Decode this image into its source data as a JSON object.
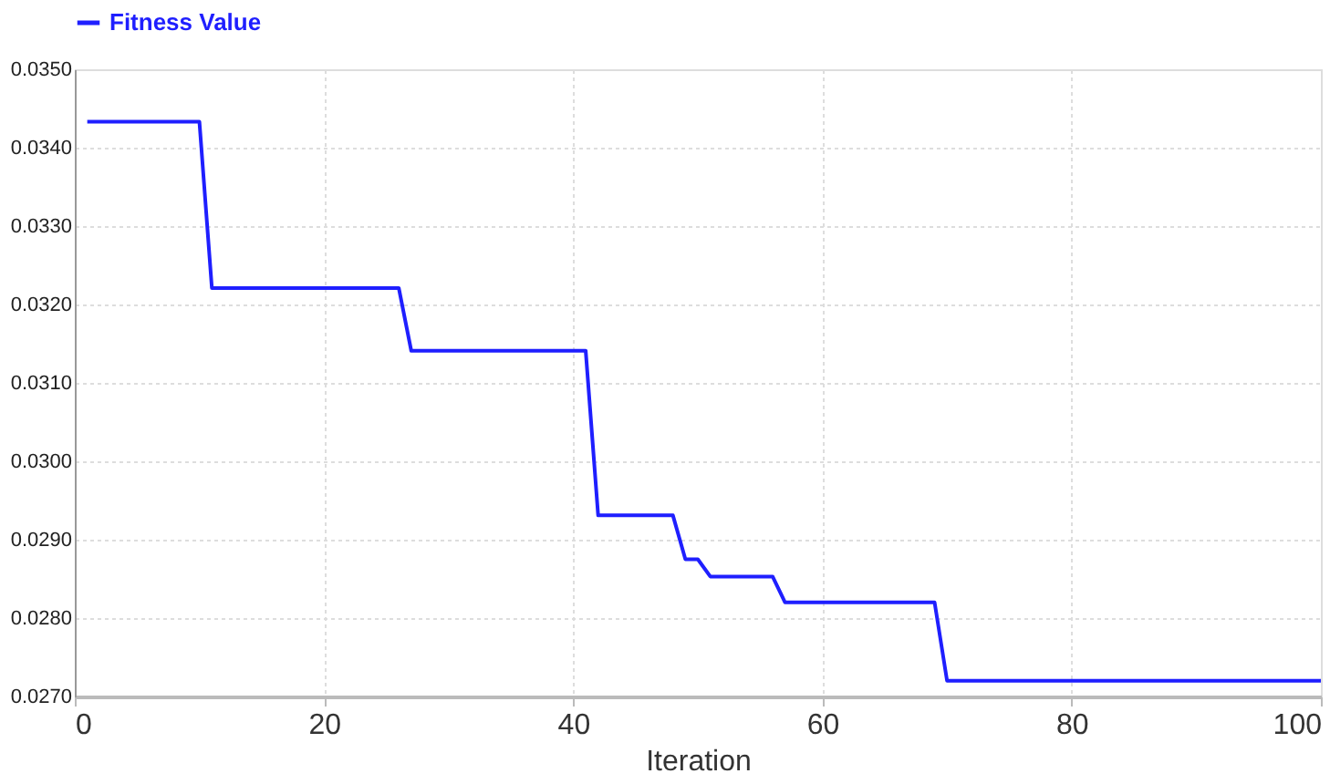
{
  "chart_data": {
    "type": "line",
    "xlabel": "Iteration",
    "x": [
      1,
      10,
      11,
      26,
      27,
      41,
      42,
      48,
      49,
      50,
      51,
      56,
      57,
      69,
      70,
      100
    ],
    "series": [
      {
        "name": "Fitness Value",
        "color": "#1f1fff",
        "values": [
          0.03433,
          0.03433,
          0.03221,
          0.03221,
          0.03141,
          0.03141,
          0.02931,
          0.02931,
          0.02875,
          0.02875,
          0.02853,
          0.02853,
          0.0282,
          0.0282,
          0.0272,
          0.0272
        ]
      }
    ],
    "xlim": [
      0,
      100
    ],
    "xticks": [
      0,
      20,
      40,
      60,
      80,
      100
    ],
    "ylim": [
      0.027,
      0.035
    ],
    "yticks": [
      {
        "value": 0.027,
        "label": "0.0270"
      },
      {
        "value": 0.028,
        "label": "0.0280"
      },
      {
        "value": 0.029,
        "label": "0.0290"
      },
      {
        "value": 0.03,
        "label": "0.0300"
      },
      {
        "value": 0.031,
        "label": "0.0310"
      },
      {
        "value": 0.032,
        "label": "0.0320"
      },
      {
        "value": 0.033,
        "label": "0.0330"
      },
      {
        "value": 0.034,
        "label": "0.0340"
      },
      {
        "value": 0.035,
        "label": "0.0350"
      }
    ],
    "grid": true,
    "legend": "top",
    "marker": "none",
    "line_style": "solid"
  }
}
